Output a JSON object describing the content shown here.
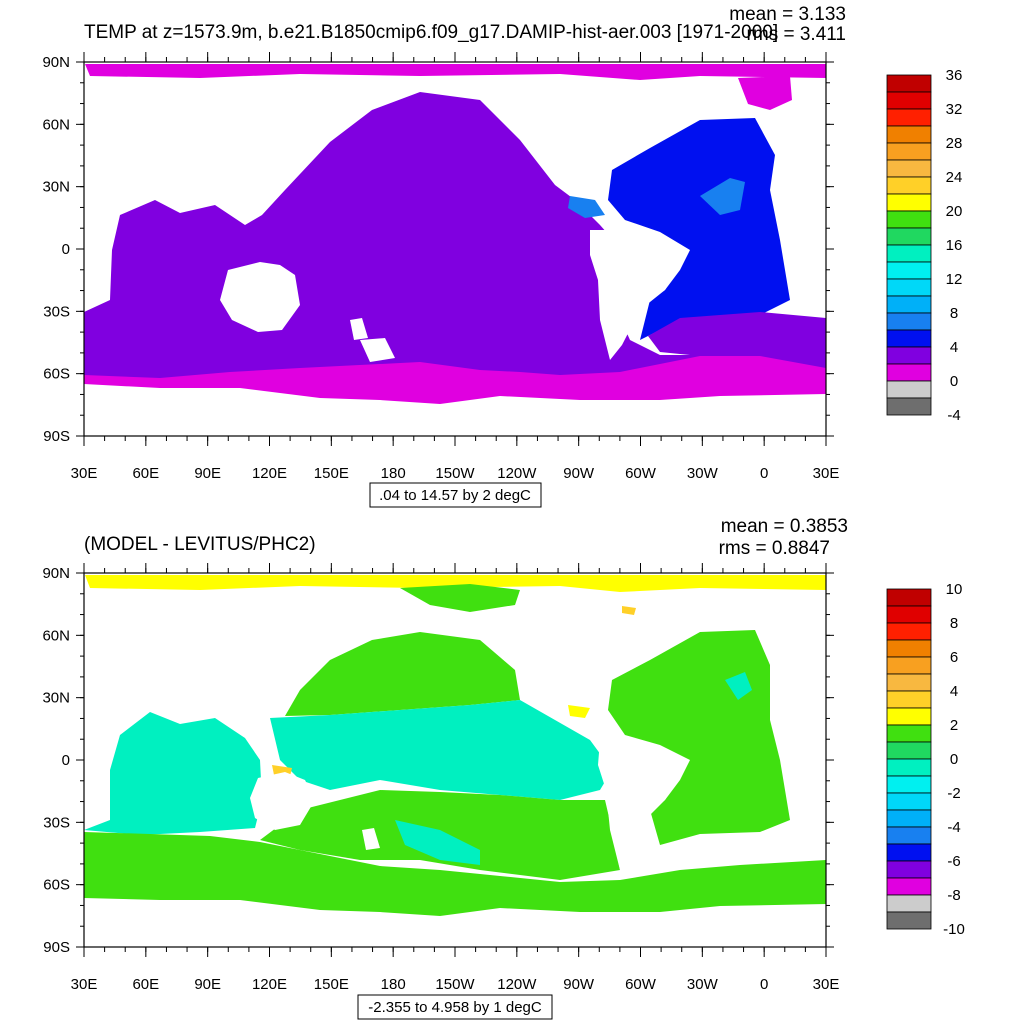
{
  "panels": [
    {
      "title": "TEMP at z=1573.9m, b.e21.B1850cmip6.f09_g17.DAMIP-hist-aer.003 [1971-2000]",
      "mean": "mean = 3.133",
      "rms": "rms = 3.411",
      "range_label": ".04 to 14.57 by 2 degC",
      "lat_labels": [
        "90N",
        "60N",
        "30N",
        "0",
        "30S",
        "60S",
        "90S"
      ],
      "lon_labels": [
        "30E",
        "60E",
        "90E",
        "120E",
        "150E",
        "180",
        "150W",
        "120W",
        "90W",
        "60W",
        "30W",
        "0",
        "30E"
      ],
      "colorbar": {
        "labels": [
          "36",
          "32",
          "28",
          "24",
          "20",
          "16",
          "12",
          "8",
          "4",
          "0",
          "-4"
        ],
        "colors": [
          "#c00000",
          "#e00000",
          "#ff2000",
          "#f08000",
          "#f8a020",
          "#f8b840",
          "#ffd028",
          "#ffff00",
          "#40e010",
          "#20d860",
          "#00f0c0",
          "#00f0f0",
          "#00d8f8",
          "#00b0f8",
          "#1880f0",
          "#0010f0",
          "#8000e0",
          "#e000e0",
          "#cccccc",
          "#6e6e6e"
        ]
      }
    },
    {
      "title": "(MODEL - LEVITUS/PHC2)",
      "mean": "mean = 0.3853",
      "rms": "rms = 0.8847",
      "range_label": "-2.355 to 4.958 by 1 degC",
      "lat_labels": [
        "90N",
        "60N",
        "30N",
        "0",
        "30S",
        "60S",
        "90S"
      ],
      "lon_labels": [
        "30E",
        "60E",
        "90E",
        "120E",
        "150E",
        "180",
        "150W",
        "120W",
        "90W",
        "60W",
        "30W",
        "0",
        "30E"
      ],
      "colorbar": {
        "labels": [
          "10",
          "8",
          "6",
          "4",
          "2",
          "0",
          "-2",
          "-4",
          "-6",
          "-8",
          "-10"
        ],
        "colors": [
          "#c00000",
          "#e00000",
          "#ff2000",
          "#f08000",
          "#f8a020",
          "#f8b840",
          "#ffd028",
          "#ffff00",
          "#40e010",
          "#20d860",
          "#00f0c0",
          "#00f0f0",
          "#00d8f8",
          "#00b0f8",
          "#1880f0",
          "#0010f0",
          "#8000e0",
          "#e000e0",
          "#cccccc",
          "#6e6e6e"
        ]
      }
    }
  ]
}
